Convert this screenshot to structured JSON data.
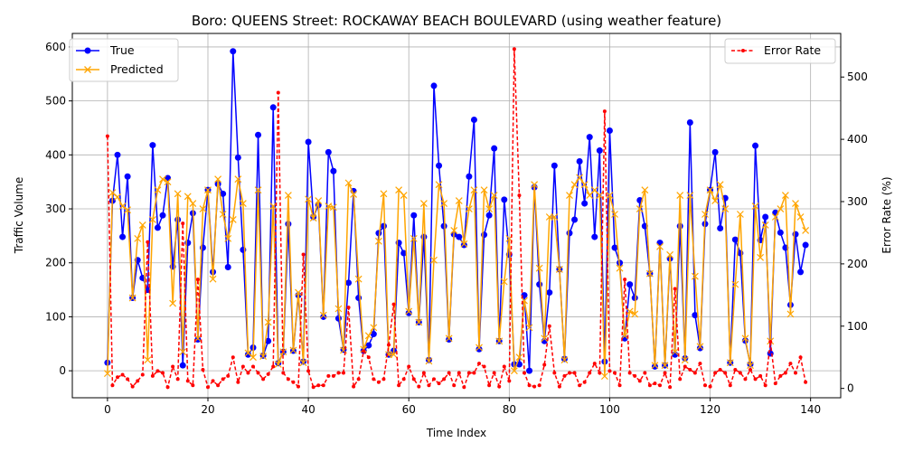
{
  "chart_data": {
    "type": "line",
    "title": "Boro: QUEENS Street: ROCKAWAY BEACH BOULEVARD (using weather feature)",
    "xlabel": "Time Index",
    "ylabel": "Traffic Volume",
    "y2label": "Error Rate (%)",
    "xlim": [
      -7,
      146
    ],
    "ylim": [
      -50,
      625
    ],
    "y2lim": [
      -15,
      570
    ],
    "xticks": [
      0,
      20,
      40,
      60,
      80,
      100,
      120,
      140
    ],
    "yticks": [
      0,
      100,
      200,
      300,
      400,
      500,
      600
    ],
    "y2ticks": [
      0,
      100,
      200,
      300,
      400,
      500
    ],
    "grid": true,
    "legend_left": "upper-left",
    "legend_right": "upper-right",
    "series": [
      {
        "name": "True",
        "color": "#0000ff",
        "axis": "left",
        "marker": "o",
        "values": [
          15,
          315,
          400,
          248,
          360,
          135,
          205,
          172,
          150,
          418,
          265,
          288,
          357,
          193,
          280,
          10,
          237,
          292,
          58,
          228,
          335,
          183,
          346,
          328,
          192,
          592,
          395,
          224,
          30,
          43,
          437,
          28,
          55,
          488,
          14,
          35,
          272,
          37,
          140,
          17,
          424,
          285,
          307,
          100,
          405,
          370,
          97,
          39,
          163,
          333,
          135,
          37,
          47,
          68,
          255,
          268,
          30,
          37,
          237,
          218,
          107,
          288,
          90,
          248,
          20,
          528,
          380,
          268,
          58,
          253,
          248,
          233,
          360,
          465,
          40,
          252,
          288,
          412,
          55,
          317,
          215,
          12,
          12,
          140,
          0,
          340,
          160,
          55,
          145,
          380,
          188,
          22,
          255,
          280,
          388,
          310,
          433,
          248,
          408,
          17,
          445,
          228,
          200,
          60,
          160,
          135,
          316,
          268,
          180,
          8,
          237,
          10,
          208,
          30,
          268,
          23,
          460,
          103,
          42,
          272,
          335,
          405,
          264,
          320,
          15,
          243,
          218,
          56,
          12,
          417,
          242,
          285,
          32,
          293,
          256,
          228,
          122,
          253,
          183,
          233
        ]
      },
      {
        "name": "Predicted",
        "color": "#ffa500",
        "axis": "left",
        "marker": "x",
        "values": [
          -5,
          330,
          322,
          305,
          298,
          135,
          245,
          270,
          20,
          280,
          335,
          355,
          350,
          125,
          328,
          35,
          323,
          310,
          60,
          300,
          335,
          170,
          355,
          290,
          245,
          280,
          355,
          310,
          33,
          25,
          335,
          27,
          90,
          305,
          12,
          35,
          325,
          38,
          145,
          15,
          318,
          283,
          315,
          103,
          305,
          303,
          115,
          38,
          348,
          327,
          170,
          40,
          65,
          80,
          240,
          328,
          30,
          30,
          335,
          325,
          110,
          245,
          90,
          310,
          18,
          205,
          345,
          310,
          60,
          260,
          315,
          235,
          300,
          335,
          43,
          335,
          300,
          325,
          55,
          165,
          245,
          0,
          25,
          130,
          80,
          345,
          190,
          60,
          285,
          285,
          188,
          20,
          325,
          345,
          358,
          345,
          325,
          335,
          325,
          -10,
          325,
          290,
          190,
          65,
          110,
          105,
          300,
          335,
          180,
          10,
          230,
          10,
          215,
          35,
          325,
          20,
          325,
          175,
          45,
          290,
          335,
          315,
          345,
          300,
          15,
          160,
          290,
          60,
          10,
          305,
          210,
          270,
          55,
          285,
          300,
          325,
          105,
          310,
          285,
          260
        ]
      },
      {
        "name": "Error Rate",
        "color": "#ff0000",
        "axis": "right",
        "marker": ".",
        "dashed": true,
        "values": [
          405,
          5,
          18,
          22,
          15,
          3,
          12,
          22,
          235,
          20,
          28,
          25,
          2,
          35,
          15,
          265,
          12,
          5,
          175,
          30,
          2,
          12,
          5,
          15,
          20,
          50,
          10,
          35,
          25,
          35,
          25,
          15,
          23,
          35,
          475,
          25,
          15,
          10,
          3,
          215,
          28,
          2,
          5,
          5,
          20,
          20,
          25,
          25,
          130,
          3,
          15,
          60,
          50,
          15,
          10,
          15,
          70,
          135,
          5,
          15,
          35,
          15,
          3,
          25,
          5,
          15,
          8,
          15,
          25,
          5,
          25,
          2,
          25,
          25,
          40,
          35,
          5,
          25,
          3,
          35,
          12,
          545,
          310,
          25,
          5,
          3,
          5,
          38,
          100,
          25,
          3,
          20,
          25,
          25,
          5,
          10,
          25,
          40,
          25,
          445,
          28,
          25,
          5,
          175,
          25,
          20,
          12,
          25,
          5,
          8,
          5,
          25,
          2,
          160,
          15,
          35,
          30,
          25,
          40,
          5,
          3,
          25,
          30,
          25,
          5,
          30,
          25,
          15,
          30,
          15,
          20,
          5,
          75,
          8,
          20,
          25,
          40,
          25,
          50,
          10
        ]
      }
    ]
  }
}
